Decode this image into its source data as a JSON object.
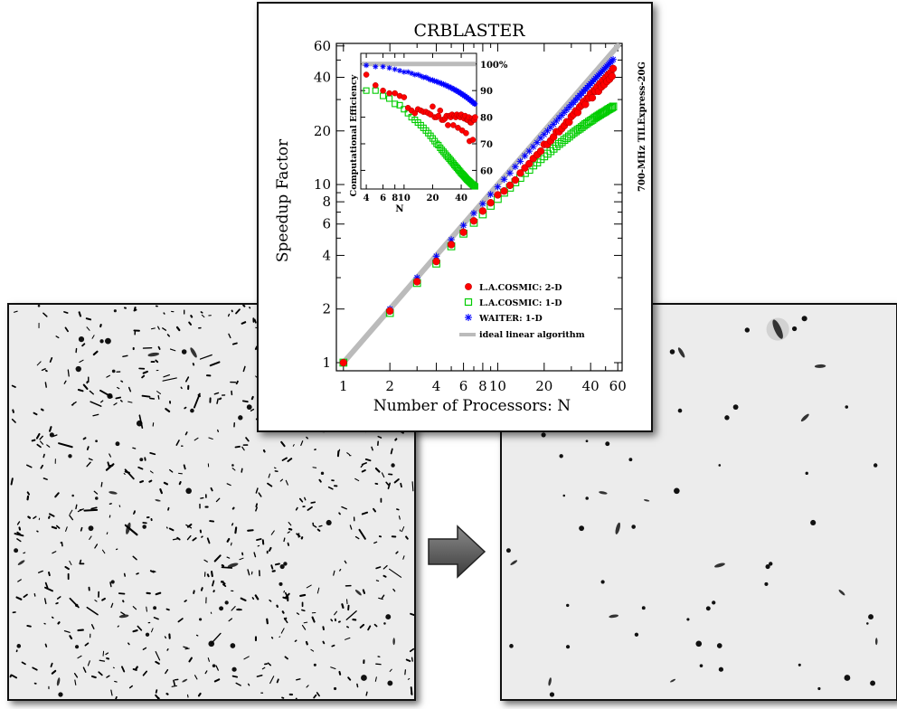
{
  "chart_data": [
    {
      "type": "scatter",
      "title": "CRBLASTER",
      "xlabel": "Number of Processors: N",
      "ylabel": "Speedup Factor",
      "side_label": "700-MHz TILExpress-20G",
      "x_scale": "log",
      "y_scale": "log",
      "xlim": [
        0.9,
        64
      ],
      "ylim": [
        0.9,
        62
      ],
      "x_ticks": [
        1,
        2,
        4,
        6,
        8,
        10,
        20,
        40,
        60
      ],
      "x_tick_labels": [
        "1",
        "2",
        "4",
        "6",
        "8",
        "10",
        "20",
        "40",
        "60"
      ],
      "y_ticks": [
        1,
        2,
        4,
        6,
        8,
        10,
        20,
        40,
        60
      ],
      "y_tick_labels": [
        "1",
        "2",
        "4",
        "6",
        "8",
        "10",
        "20",
        "40",
        "60"
      ],
      "legend_position": "bottom-right",
      "series": [
        {
          "name": "L.A.COSMIC: 2-D",
          "color": "#ff0000",
          "marker": "filled-circle",
          "x": [
            1,
            2,
            3,
            4,
            5,
            6,
            7,
            8,
            9,
            10,
            11,
            12,
            13,
            14,
            15,
            16,
            17,
            18,
            19,
            20,
            21,
            22,
            23,
            24,
            25,
            26,
            27,
            28,
            29,
            30,
            31,
            32,
            33,
            34,
            35,
            36,
            37,
            38,
            39,
            40,
            41,
            42,
            43,
            44,
            45,
            46,
            47,
            48,
            49,
            50,
            51,
            52,
            53,
            54,
            55,
            56
          ],
          "y": [
            1.0,
            1.95,
            2.85,
            3.7,
            4.6,
            5.4,
            6.25,
            7.1,
            7.9,
            8.75,
            9.2,
            9.9,
            10.6,
            11.6,
            12.4,
            13.1,
            14.0,
            14.7,
            15.4,
            16.8,
            16.8,
            17.6,
            18.5,
            19.8,
            19.8,
            20.6,
            21.4,
            22.5,
            22.4,
            24.1,
            24.8,
            25.9,
            25.4,
            27.3,
            27.9,
            29.2,
            28.2,
            30.5,
            30.6,
            32.4,
            30.7,
            33.7,
            33.4,
            35.3,
            33.4,
            36.9,
            35.3,
            38.4,
            36.4,
            39.8,
            37.9,
            41.4,
            39.0,
            42.6,
            40.5,
            44.8
          ]
        },
        {
          "name": "L.A.COSMIC: 1-D",
          "color": "#00cc00",
          "marker": "open-square",
          "x": [
            1,
            2,
            3,
            4,
            5,
            6,
            7,
            8,
            9,
            10,
            11,
            12,
            13,
            14,
            15,
            16,
            17,
            18,
            19,
            20,
            21,
            22,
            23,
            24,
            25,
            26,
            27,
            28,
            29,
            30,
            31,
            32,
            33,
            34,
            35,
            36,
            37,
            38,
            39,
            40,
            41,
            42,
            43,
            44,
            45,
            46,
            47,
            48,
            49,
            50,
            51,
            52,
            53,
            54,
            55,
            56
          ],
          "y": [
            1.0,
            1.9,
            2.8,
            3.6,
            4.5,
            5.3,
            6.1,
            6.8,
            7.6,
            8.3,
            9.0,
            9.6,
            10.3,
            10.9,
            11.6,
            12.1,
            12.8,
            13.3,
            13.9,
            14.4,
            14.9,
            15.4,
            15.9,
            16.4,
            16.9,
            17.3,
            17.8,
            18.2,
            18.6,
            19.1,
            19.5,
            19.9,
            20.3,
            20.6,
            21.0,
            21.4,
            21.8,
            22.1,
            22.5,
            22.8,
            23.1,
            23.5,
            23.8,
            24.1,
            24.4,
            24.7,
            25.0,
            25.3,
            25.5,
            25.8,
            26.1,
            26.4,
            26.6,
            26.9,
            27.1,
            27.4
          ]
        },
        {
          "name": "WAITER: 1-D",
          "color": "#0000ff",
          "marker": "asterisk",
          "x": [
            1,
            2,
            3,
            4,
            5,
            6,
            7,
            8,
            9,
            10,
            11,
            12,
            13,
            14,
            15,
            16,
            17,
            18,
            19,
            20,
            21,
            22,
            23,
            24,
            25,
            26,
            27,
            28,
            29,
            30,
            31,
            32,
            33,
            34,
            35,
            36,
            37,
            38,
            39,
            40,
            41,
            42,
            43,
            44,
            45,
            46,
            47,
            48,
            49,
            50,
            51,
            52,
            53,
            54,
            55,
            56
          ],
          "y": [
            1.0,
            2.0,
            3.0,
            3.96,
            4.9,
            5.9,
            6.9,
            7.8,
            8.8,
            9.7,
            10.7,
            11.6,
            12.6,
            13.5,
            14.5,
            15.4,
            16.3,
            17.2,
            18.2,
            19.1,
            20.0,
            20.9,
            21.8,
            22.7,
            23.7,
            24.5,
            25.4,
            26.3,
            27.2,
            28.1,
            28.9,
            29.8,
            30.7,
            31.6,
            32.5,
            33.4,
            34.2,
            35.1,
            36.0,
            36.8,
            37.7,
            38.6,
            39.4,
            40.3,
            41.1,
            42.0,
            42.8,
            43.7,
            44.5,
            45.4,
            46.2,
            47.0,
            47.9,
            48.7,
            49.6,
            50.4
          ]
        },
        {
          "name": "ideal linear algorithm",
          "color": "#bbbbbb",
          "marker": "line",
          "x": [
            1,
            60
          ],
          "y": [
            1,
            60
          ]
        }
      ]
    },
    {
      "type": "scatter",
      "title": "",
      "xlabel": "N",
      "ylabel": "Computational Efficiency",
      "x_scale": "log",
      "xlim": [
        3.5,
        58
      ],
      "ylim": [
        53,
        104
      ],
      "x_ticks": [
        4,
        6,
        8,
        10,
        20,
        40
      ],
      "x_tick_labels": [
        "4",
        "6",
        "8",
        "10",
        "20",
        "40"
      ],
      "y_ticks": [
        60,
        70,
        80,
        90,
        100
      ],
      "y_tick_labels": [
        "60",
        "70",
        "80",
        "90",
        "100%"
      ],
      "ideal_line_value": 100,
      "series": [
        {
          "name": "L.A.COSMIC: 2-D",
          "color": "#ff0000",
          "marker": "filled-circle",
          "x": [
            4,
            5,
            6,
            7,
            8,
            9,
            10,
            11,
            12,
            13,
            14,
            15,
            16,
            17,
            18,
            19,
            20,
            21,
            22,
            23,
            24,
            25,
            26,
            27,
            28,
            29,
            30,
            31,
            32,
            33,
            34,
            35,
            36,
            37,
            38,
            39,
            40,
            41,
            42,
            43,
            44,
            45,
            46,
            47,
            48,
            49,
            50,
            51,
            52,
            53,
            54,
            55,
            56
          ],
          "y": [
            96,
            92,
            90,
            89,
            89,
            88,
            87.5,
            83.5,
            82.5,
            81.5,
            83,
            82.5,
            82,
            82,
            81.5,
            81,
            84,
            80,
            80,
            80.5,
            82.5,
            79,
            79,
            79.5,
            80.5,
            77,
            80.5,
            80,
            81,
            77,
            80.5,
            80,
            81,
            76,
            80.5,
            80,
            81,
            75,
            80,
            79.5,
            80.5,
            74,
            79,
            79,
            80,
            71,
            78,
            78,
            79.5,
            71.5,
            79,
            79,
            80
          ]
        },
        {
          "name": "L.A.COSMIC: 1-D",
          "color": "#00cc00",
          "marker": "open-square",
          "x": [
            4,
            5,
            6,
            7,
            8,
            9,
            10,
            11,
            12,
            13,
            14,
            15,
            16,
            17,
            18,
            19,
            20,
            21,
            22,
            23,
            24,
            25,
            26,
            27,
            28,
            29,
            30,
            31,
            32,
            33,
            34,
            35,
            36,
            37,
            38,
            39,
            40,
            41,
            42,
            43,
            44,
            45,
            46,
            47,
            48,
            49,
            50,
            51,
            52,
            53,
            54,
            55,
            56
          ],
          "y": [
            90,
            90,
            88,
            87,
            85,
            84.5,
            83,
            81.5,
            80,
            79,
            78,
            77,
            76,
            75,
            74,
            73,
            72,
            71,
            70,
            69.5,
            68.5,
            67.7,
            67,
            66.3,
            65.6,
            65,
            64.4,
            63.8,
            63.2,
            62.6,
            62,
            61.5,
            61,
            60.5,
            60,
            59.5,
            59,
            58.6,
            58.2,
            57.8,
            57.4,
            57,
            56.6,
            56.3,
            56,
            55.7,
            55.4,
            55.1,
            54.8,
            54.6,
            54.4,
            54.2,
            54
          ]
        },
        {
          "name": "WAITER: 1-D",
          "color": "#0000ff",
          "marker": "asterisk",
          "x": [
            4,
            5,
            6,
            7,
            8,
            9,
            10,
            11,
            12,
            13,
            14,
            15,
            16,
            17,
            18,
            19,
            20,
            21,
            22,
            23,
            24,
            25,
            26,
            27,
            28,
            29,
            30,
            31,
            32,
            33,
            34,
            35,
            36,
            37,
            38,
            39,
            40,
            41,
            42,
            43,
            44,
            45,
            46,
            47,
            48,
            49,
            50,
            51,
            52,
            53,
            54,
            55,
            56
          ],
          "y": [
            99.5,
            99,
            99,
            98.5,
            98,
            97.5,
            97,
            97,
            96.5,
            96,
            96,
            95.5,
            95,
            95,
            94.5,
            94,
            94,
            93.5,
            93.5,
            93,
            93,
            92.5,
            92.5,
            92,
            92,
            91.5,
            91.5,
            91,
            91,
            90.5,
            90.5,
            90,
            90,
            89.5,
            89.5,
            89,
            89,
            88.5,
            88.5,
            88,
            88,
            87.5,
            87.5,
            87,
            87,
            86.5,
            86.5,
            86,
            86,
            85.5,
            85.5,
            85,
            85
          ]
        }
      ]
    }
  ],
  "legend": [
    {
      "label": "L.A.COSMIC: 2-D",
      "color": "#ff0000",
      "marker": "filled-circle"
    },
    {
      "label": "L.A.COSMIC: 1-D",
      "color": "#00cc00",
      "marker": "open-square"
    },
    {
      "label": "WAITER: 1-D",
      "color": "#0000ff",
      "marker": "asterisk"
    },
    {
      "label": "ideal linear algorithm",
      "color": "#bbbbbb",
      "marker": "line"
    }
  ]
}
